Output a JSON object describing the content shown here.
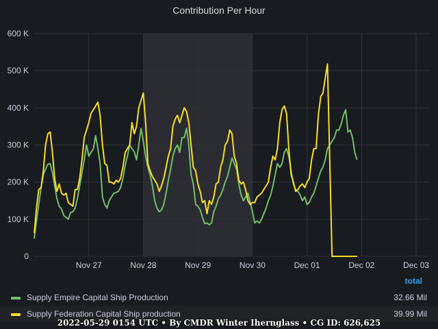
{
  "chart_data": {
    "type": "line",
    "title": "Contribution Per Hour",
    "y_ticks": [
      "0",
      "100 K",
      "200 K",
      "300 K",
      "400 K",
      "500 K",
      "600 K"
    ],
    "ylim": [
      0,
      600000
    ],
    "x_ticks": [
      "Nov 27",
      "Nov 28",
      "Nov 29",
      "Nov 30",
      "Dec 01",
      "Dec 02",
      "Dec 03"
    ],
    "x_tick_hours": [
      24,
      48,
      72,
      96,
      120,
      144,
      168
    ],
    "xlim": [
      0,
      174
    ],
    "shaded_range_hours": [
      48,
      96
    ],
    "grid": true,
    "legend": {
      "placement": "bottom",
      "header": "total"
    },
    "series": [
      {
        "name": "Supply Empire Capital Ship Production",
        "color": "#73bf69",
        "total": "32.66 Mil",
        "points": [
          [
            0,
            48000
          ],
          [
            1,
            95000
          ],
          [
            2,
            140000
          ],
          [
            3,
            185000
          ],
          [
            4,
            220000
          ],
          [
            5,
            235000
          ],
          [
            6,
            248000
          ],
          [
            7,
            250000
          ],
          [
            8,
            225000
          ],
          [
            9,
            190000
          ],
          [
            10,
            155000
          ],
          [
            11,
            135000
          ],
          [
            12,
            128000
          ],
          [
            13,
            110000
          ],
          [
            14,
            105000
          ],
          [
            15,
            100000
          ],
          [
            16,
            118000
          ],
          [
            17,
            120000
          ],
          [
            18,
            130000
          ],
          [
            19,
            155000
          ],
          [
            20,
            190000
          ],
          [
            21,
            225000
          ],
          [
            22,
            260000
          ],
          [
            23,
            300000
          ],
          [
            24,
            270000
          ],
          [
            25,
            280000
          ],
          [
            26,
            290000
          ],
          [
            27,
            325000
          ],
          [
            28,
            290000
          ],
          [
            29,
            250000
          ],
          [
            30,
            160000
          ],
          [
            31,
            140000
          ],
          [
            32,
            130000
          ],
          [
            33,
            150000
          ],
          [
            34,
            160000
          ],
          [
            35,
            170000
          ],
          [
            36,
            172000
          ],
          [
            37,
            175000
          ],
          [
            38,
            185000
          ],
          [
            39,
            210000
          ],
          [
            40,
            245000
          ],
          [
            41,
            270000
          ],
          [
            42,
            300000
          ],
          [
            43,
            290000
          ],
          [
            44,
            282000
          ],
          [
            45,
            260000
          ],
          [
            46,
            300000
          ],
          [
            47,
            345000
          ],
          [
            48,
            310000
          ],
          [
            49,
            270000
          ],
          [
            50,
            240000
          ],
          [
            51,
            220000
          ],
          [
            52,
            190000
          ],
          [
            53,
            150000
          ],
          [
            54,
            130000
          ],
          [
            55,
            120000
          ],
          [
            56,
            125000
          ],
          [
            57,
            140000
          ],
          [
            58,
            170000
          ],
          [
            59,
            205000
          ],
          [
            60,
            235000
          ],
          [
            61,
            270000
          ],
          [
            62,
            290000
          ],
          [
            63,
            300000
          ],
          [
            64,
            280000
          ],
          [
            65,
            320000
          ],
          [
            66,
            320000
          ],
          [
            67,
            345000
          ],
          [
            68,
            300000
          ],
          [
            69,
            220000
          ],
          [
            70,
            195000
          ],
          [
            71,
            140000
          ],
          [
            72,
            135000
          ],
          [
            73,
            125000
          ],
          [
            74,
            105000
          ],
          [
            75,
            88000
          ],
          [
            76,
            90000
          ],
          [
            77,
            85000
          ],
          [
            78,
            90000
          ],
          [
            79,
            120000
          ],
          [
            80,
            135000
          ],
          [
            81,
            155000
          ],
          [
            82,
            165000
          ],
          [
            83,
            180000
          ],
          [
            84,
            200000
          ],
          [
            85,
            215000
          ],
          [
            86,
            240000
          ],
          [
            87,
            265000
          ],
          [
            88,
            250000
          ],
          [
            89,
            235000
          ],
          [
            90,
            195000
          ],
          [
            91,
            165000
          ],
          [
            92,
            150000
          ],
          [
            93,
            160000
          ],
          [
            94,
            170000
          ],
          [
            95,
            145000
          ],
          [
            96,
            120000
          ],
          [
            97,
            90000
          ],
          [
            98,
            95000
          ],
          [
            99,
            90000
          ],
          [
            100,
            100000
          ],
          [
            101,
            115000
          ],
          [
            102,
            130000
          ],
          [
            103,
            150000
          ],
          [
            104,
            165000
          ],
          [
            105,
            190000
          ],
          [
            106,
            220000
          ],
          [
            107,
            250000
          ],
          [
            108,
            240000
          ],
          [
            109,
            250000
          ],
          [
            110,
            280000
          ],
          [
            111,
            290000
          ],
          [
            112,
            270000
          ],
          [
            113,
            230000
          ],
          [
            114,
            195000
          ],
          [
            115,
            180000
          ],
          [
            116,
            175000
          ],
          [
            117,
            165000
          ],
          [
            118,
            150000
          ],
          [
            119,
            160000
          ],
          [
            120,
            140000
          ],
          [
            121,
            145000
          ],
          [
            122,
            160000
          ],
          [
            123,
            170000
          ],
          [
            124,
            190000
          ],
          [
            125,
            210000
          ],
          [
            126,
            230000
          ],
          [
            127,
            240000
          ],
          [
            128,
            260000
          ],
          [
            129,
            290000
          ],
          [
            130,
            300000
          ],
          [
            131,
            310000
          ],
          [
            132,
            320000
          ],
          [
            133,
            340000
          ],
          [
            134,
            340000
          ],
          [
            135,
            355000
          ],
          [
            136,
            380000
          ],
          [
            137,
            395000
          ],
          [
            138,
            335000
          ],
          [
            139,
            340000
          ],
          [
            140,
            320000
          ],
          [
            141,
            280000
          ],
          [
            142,
            260000
          ]
        ]
      },
      {
        "name": "Supply Federation Capital Ship production",
        "color": "#fade2a",
        "total": "39.99 Mil",
        "points": [
          [
            0,
            62000
          ],
          [
            1,
            130000
          ],
          [
            2,
            180000
          ],
          [
            3,
            185000
          ],
          [
            4,
            230000
          ],
          [
            5,
            300000
          ],
          [
            6,
            330000
          ],
          [
            7,
            335000
          ],
          [
            8,
            280000
          ],
          [
            9,
            210000
          ],
          [
            10,
            175000
          ],
          [
            11,
            195000
          ],
          [
            12,
            170000
          ],
          [
            13,
            165000
          ],
          [
            14,
            170000
          ],
          [
            15,
            145000
          ],
          [
            16,
            140000
          ],
          [
            17,
            135000
          ],
          [
            18,
            180000
          ],
          [
            19,
            180000
          ],
          [
            20,
            210000
          ],
          [
            21,
            260000
          ],
          [
            22,
            320000
          ],
          [
            23,
            340000
          ],
          [
            24,
            360000
          ],
          [
            25,
            385000
          ],
          [
            26,
            395000
          ],
          [
            27,
            405000
          ],
          [
            28,
            415000
          ],
          [
            29,
            380000
          ],
          [
            30,
            300000
          ],
          [
            31,
            250000
          ],
          [
            32,
            245000
          ],
          [
            33,
            200000
          ],
          [
            34,
            200000
          ],
          [
            35,
            195000
          ],
          [
            36,
            205000
          ],
          [
            37,
            200000
          ],
          [
            38,
            210000
          ],
          [
            39,
            240000
          ],
          [
            40,
            280000
          ],
          [
            41,
            290000
          ],
          [
            42,
            300000
          ],
          [
            43,
            360000
          ],
          [
            44,
            330000
          ],
          [
            45,
            350000
          ],
          [
            46,
            400000
          ],
          [
            47,
            420000
          ],
          [
            48,
            440000
          ],
          [
            49,
            360000
          ],
          [
            50,
            250000
          ],
          [
            51,
            230000
          ],
          [
            52,
            215000
          ],
          [
            53,
            205000
          ],
          [
            54,
            195000
          ],
          [
            55,
            175000
          ],
          [
            56,
            190000
          ],
          [
            57,
            210000
          ],
          [
            58,
            240000
          ],
          [
            59,
            270000
          ],
          [
            60,
            290000
          ],
          [
            61,
            350000
          ],
          [
            62,
            370000
          ],
          [
            63,
            380000
          ],
          [
            64,
            360000
          ],
          [
            65,
            380000
          ],
          [
            66,
            400000
          ],
          [
            67,
            390000
          ],
          [
            68,
            360000
          ],
          [
            69,
            300000
          ],
          [
            70,
            240000
          ],
          [
            71,
            230000
          ],
          [
            72,
            195000
          ],
          [
            73,
            175000
          ],
          [
            74,
            145000
          ],
          [
            75,
            150000
          ],
          [
            76,
            115000
          ],
          [
            77,
            150000
          ],
          [
            78,
            140000
          ],
          [
            79,
            160000
          ],
          [
            80,
            195000
          ],
          [
            81,
            200000
          ],
          [
            82,
            240000
          ],
          [
            83,
            260000
          ],
          [
            84,
            300000
          ],
          [
            85,
            310000
          ],
          [
            86,
            340000
          ],
          [
            87,
            330000
          ],
          [
            88,
            270000
          ],
          [
            89,
            250000
          ],
          [
            90,
            205000
          ],
          [
            91,
            195000
          ],
          [
            92,
            200000
          ],
          [
            93,
            180000
          ],
          [
            94,
            150000
          ],
          [
            95,
            140000
          ],
          [
            96,
            145000
          ],
          [
            97,
            145000
          ],
          [
            98,
            160000
          ],
          [
            99,
            165000
          ],
          [
            100,
            170000
          ],
          [
            101,
            180000
          ],
          [
            102,
            190000
          ],
          [
            103,
            200000
          ],
          [
            104,
            240000
          ],
          [
            105,
            270000
          ],
          [
            106,
            260000
          ],
          [
            107,
            290000
          ],
          [
            108,
            360000
          ],
          [
            109,
            395000
          ],
          [
            110,
            405000
          ],
          [
            111,
            385000
          ],
          [
            112,
            290000
          ],
          [
            113,
            220000
          ],
          [
            114,
            200000
          ],
          [
            115,
            175000
          ],
          [
            116,
            180000
          ],
          [
            117,
            190000
          ],
          [
            118,
            195000
          ],
          [
            119,
            185000
          ],
          [
            120,
            200000
          ],
          [
            121,
            210000
          ],
          [
            122,
            260000
          ],
          [
            123,
            290000
          ],
          [
            124,
            290000
          ],
          [
            125,
            380000
          ],
          [
            126,
            430000
          ],
          [
            127,
            440000
          ],
          [
            128,
            480000
          ],
          [
            129,
            518000
          ],
          [
            130,
            260000
          ],
          [
            131,
            0
          ],
          [
            132,
            0
          ],
          [
            133,
            0
          ],
          [
            134,
            0
          ],
          [
            135,
            0
          ],
          [
            136,
            0
          ],
          [
            137,
            0
          ],
          [
            138,
            0
          ],
          [
            139,
            0
          ],
          [
            140,
            0
          ],
          [
            141,
            0
          ],
          [
            142,
            0
          ]
        ]
      }
    ]
  },
  "footer": "2022-05-29 0154 UTC • By CMDR Winter Ihernglаss • CG ID: 626,625"
}
